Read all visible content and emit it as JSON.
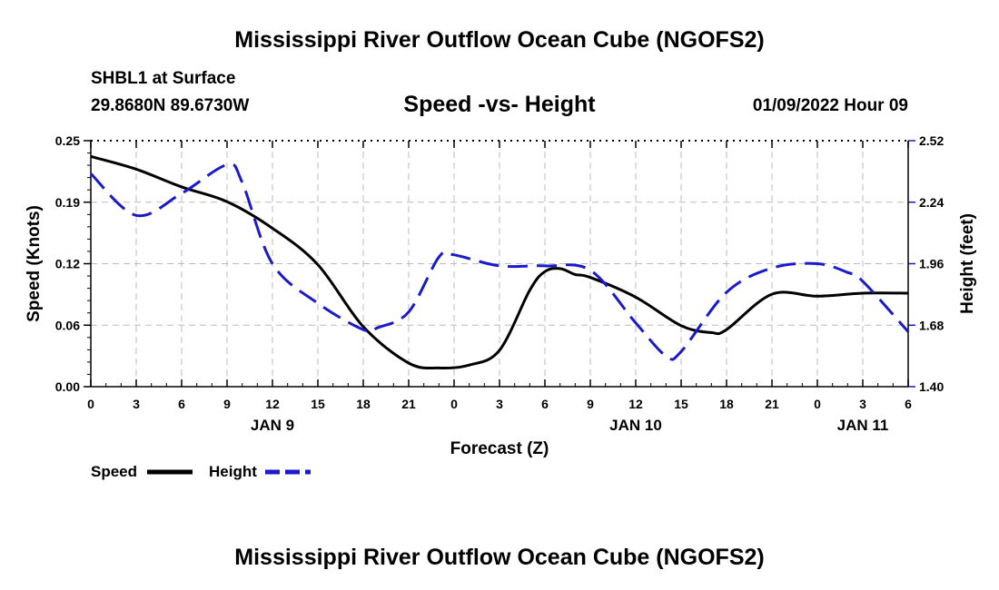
{
  "page": {
    "title": "Mississippi River Outflow Ocean Cube (NGOFS2)",
    "station": "SHBL1 at Surface",
    "coords": "29.8680N  89.6730W",
    "plot_title": "Speed -vs- Height",
    "datetime": "01/09/2022 Hour 09",
    "footer_title": "Mississippi River Outflow Ocean Cube (NGOFS2)"
  },
  "chart_data": {
    "type": "line",
    "title": "Speed -vs- Height",
    "xlabel": "Forecast (Z)",
    "ylabel": "Speed (Knots)",
    "y2label": "Height (feet)",
    "x_range": [
      0,
      54
    ],
    "ylim": [
      0.0,
      0.25
    ],
    "y2lim": [
      1.4,
      2.52
    ],
    "grid": true,
    "x_tick_hours": [
      0,
      3,
      6,
      9,
      12,
      15,
      18,
      21,
      24,
      27,
      30,
      33,
      36,
      39,
      42,
      45,
      48,
      51,
      54
    ],
    "x_tick_labels": [
      "0",
      "3",
      "6",
      "9",
      "12",
      "15",
      "18",
      "21",
      "0",
      "3",
      "6",
      "9",
      "12",
      "15",
      "18",
      "21",
      "0",
      "3",
      "6"
    ],
    "day_labels": [
      {
        "hour": 12,
        "label": "JAN 9"
      },
      {
        "hour": 36,
        "label": "JAN 10"
      },
      {
        "hour": 51,
        "label": "JAN 11"
      }
    ],
    "y_ticks": [
      "0.00",
      "0.06",
      "0.12",
      "0.19",
      "0.25"
    ],
    "y_tick_values": [
      0.0,
      0.0625,
      0.125,
      0.1875,
      0.25
    ],
    "y2_ticks": [
      "1.40",
      "1.68",
      "1.96",
      "2.24",
      "2.52"
    ],
    "y2_tick_values": [
      1.4,
      1.68,
      1.96,
      2.24,
      2.52
    ],
    "legend_position": "bottom-left",
    "colors": {
      "speed": "#000000",
      "height": "#1a1acc",
      "grid": "#bbbbbb"
    },
    "series": [
      {
        "name": "Speed",
        "axis": "left",
        "style": "solid",
        "x": [
          0,
          3,
          6,
          9,
          12,
          15,
          18,
          21,
          23,
          25,
          27,
          29,
          30,
          31,
          32,
          33,
          36,
          39,
          41,
          42,
          45,
          48,
          51,
          54
        ],
        "values": [
          0.234,
          0.221,
          0.203,
          0.188,
          0.161,
          0.124,
          0.061,
          0.024,
          0.019,
          0.022,
          0.037,
          0.098,
          0.117,
          0.12,
          0.114,
          0.111,
          0.091,
          0.062,
          0.055,
          0.058,
          0.094,
          0.092,
          0.095,
          0.095
        ]
      },
      {
        "name": "Height",
        "axis": "right",
        "style": "dashed",
        "x": [
          0,
          3,
          6,
          9,
          10,
          12,
          15,
          18,
          19,
          21,
          23,
          24,
          27,
          30,
          33,
          36,
          38,
          39,
          42,
          45,
          48,
          50,
          51,
          54
        ],
        "values": [
          2.37,
          2.18,
          2.28,
          2.41,
          2.33,
          1.96,
          1.78,
          1.66,
          1.67,
          1.74,
          1.99,
          2.0,
          1.95,
          1.95,
          1.93,
          1.69,
          1.54,
          1.56,
          1.83,
          1.94,
          1.96,
          1.92,
          1.88,
          1.65
        ]
      }
    ]
  }
}
